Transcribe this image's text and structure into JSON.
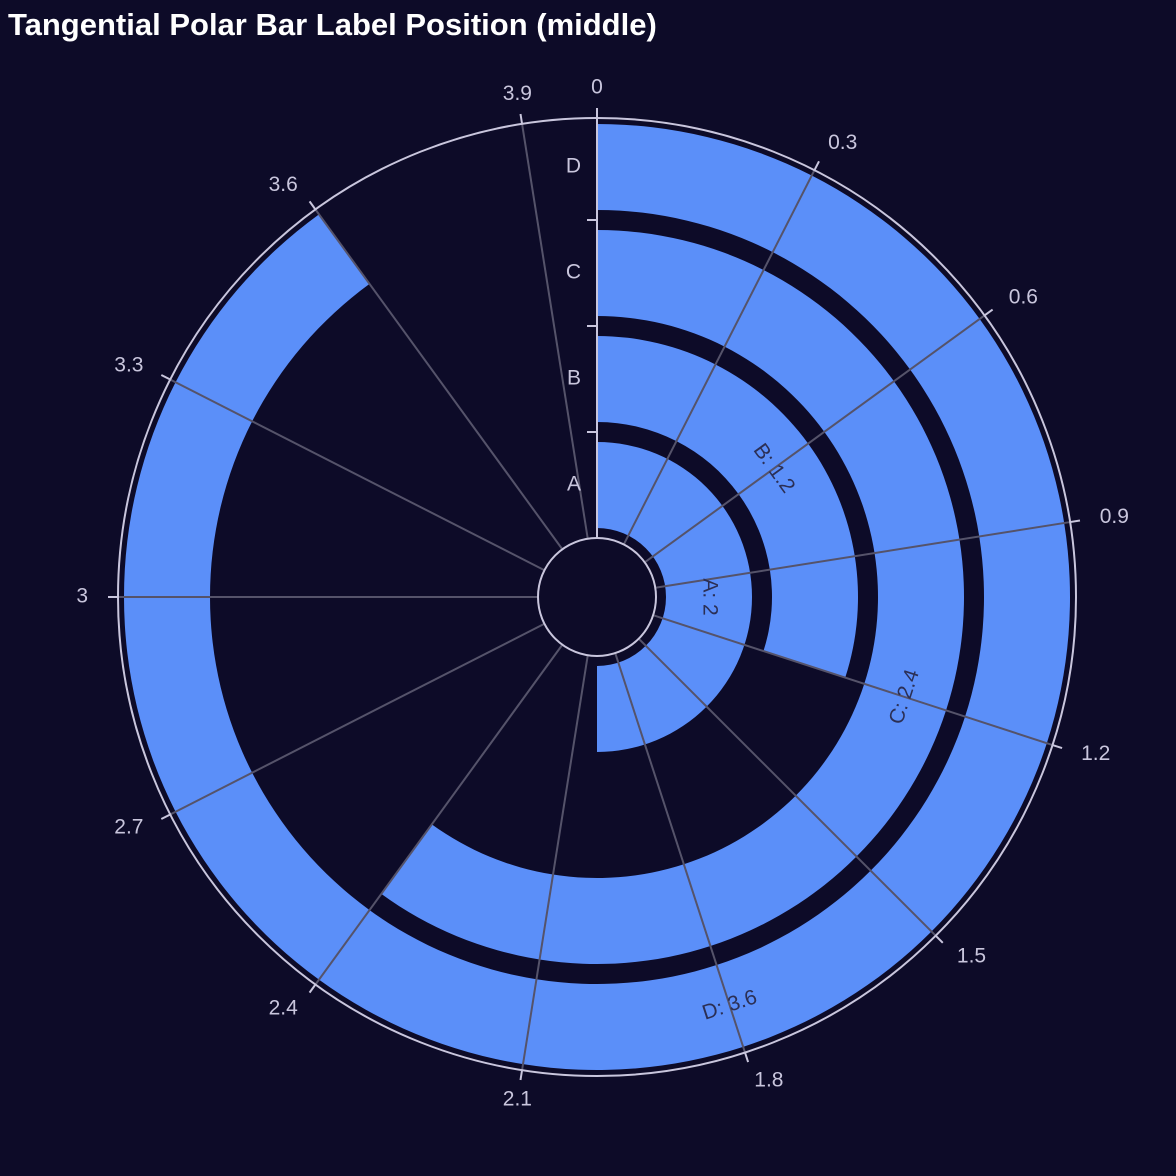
{
  "chart_data": {
    "type": "bar",
    "polar": true,
    "title": "Tangential Polar Bar Label Position (middle)",
    "categories": [
      "A",
      "B",
      "C",
      "D"
    ],
    "values": [
      2,
      1.2,
      2.4,
      3.6
    ],
    "bar_labels": [
      "A: 2",
      "B: 1.2",
      "C: 2.4",
      "D: 3.6"
    ],
    "theta_range": [
      0,
      4
    ],
    "theta_ticks": [
      0,
      0.3,
      0.6,
      0.9,
      1.2,
      1.5,
      1.8,
      2.1,
      2.4,
      2.7,
      3,
      3.3,
      3.6,
      3.9
    ],
    "theta_tick_labels": [
      "0",
      "0.3",
      "0.6",
      "0.9",
      "1.2",
      "1.5",
      "1.8",
      "2.1",
      "2.4",
      "2.7",
      "3",
      "3.3",
      "3.6",
      "3.9"
    ],
    "label_position": "middle",
    "grid": true,
    "colors": {
      "background": "#0d0b28",
      "bar": "#5b8ff9",
      "grid": "#55536a",
      "axis": "#c9c6dd",
      "text": "#c9c6dd",
      "bar_label": "#2b2f55",
      "title": "#ffffff"
    }
  }
}
